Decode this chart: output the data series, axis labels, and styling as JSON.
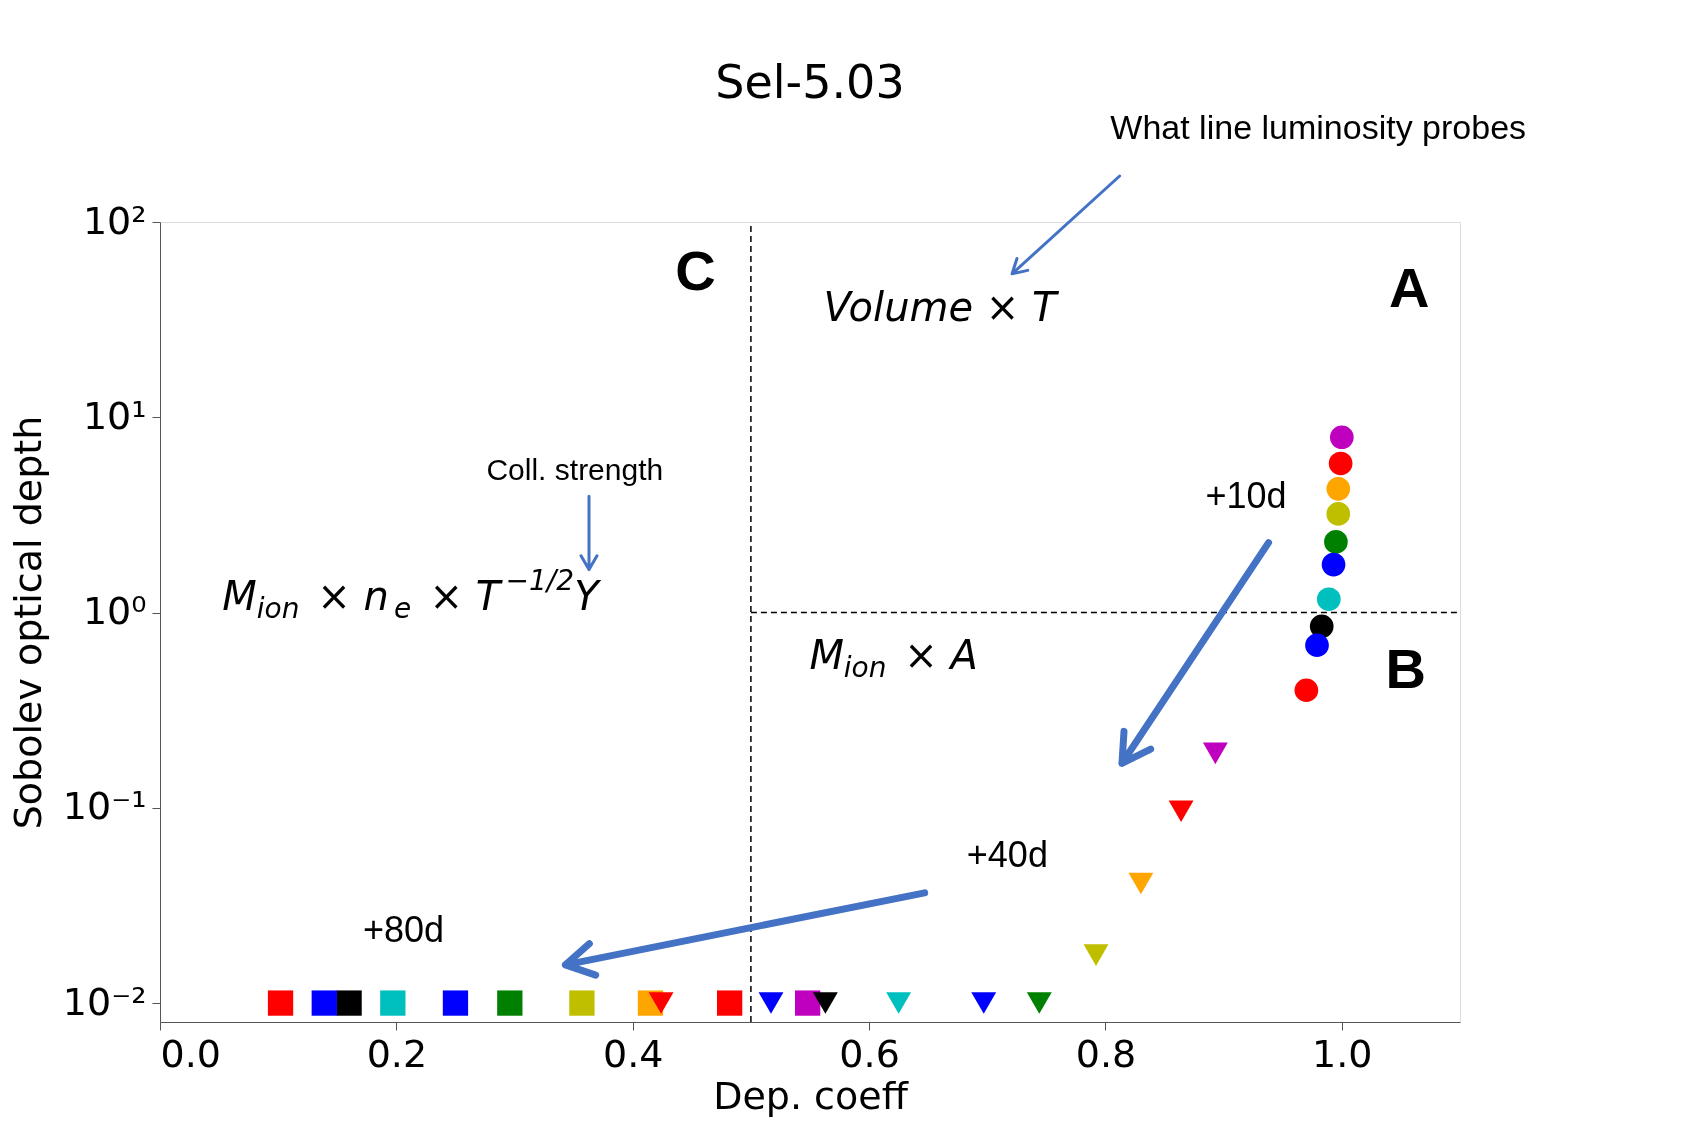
{
  "chart_data": {
    "type": "scatter",
    "title": "Sel-5.03",
    "xlabel": "Dep. coeff",
    "ylabel": "Sobolev optical depth",
    "xlim": [
      0,
      1.1
    ],
    "ylim": [
      0.008,
      100
    ],
    "log": "y",
    "grid": false,
    "xticks": [
      {
        "value": 0,
        "label": "0.0"
      },
      0.2,
      0.4,
      0.6,
      0.8,
      {
        "value": 1,
        "label": "1.0"
      }
    ],
    "yticks": [
      {
        "value": 0.01,
        "label": "10⁻²"
      },
      {
        "value": 0.1,
        "label": "10⁻¹"
      },
      {
        "value": 1,
        "label": "10⁰"
      },
      {
        "value": 10,
        "label": "10¹"
      },
      {
        "value": 100,
        "label": "10²"
      }
    ],
    "series": [
      {
        "type": "scatter",
        "marker": "triangle",
        "x": [
          0.893,
          0.864,
          0.83,
          0.792,
          0.744,
          0.697,
          0.625,
          0.563,
          0.517,
          0.424
        ],
        "values": [
          0.19,
          0.096,
          0.041,
          0.0176,
          0.01,
          0.01,
          0.01,
          0.01,
          0.01,
          0.01
        ],
        "colors": [
          "#bf00bf",
          "#ff0000",
          "#ffa500",
          "#bfbf00",
          "#008000",
          "#0000ff",
          "#00bfbf",
          "#000000",
          "#0000ff",
          "#ff0000"
        ]
      },
      {
        "type": "scatter",
        "marker": "square",
        "x": [
          0.548,
          0.482,
          0.415,
          0.357,
          0.296,
          0.25,
          0.197,
          0.16,
          0.139,
          0.102
        ],
        "values": [
          0.01,
          0.01,
          0.01,
          0.01,
          0.01,
          0.01,
          0.01,
          0.01,
          0.01,
          0.01
        ],
        "colors": [
          "#bf00bf",
          "#ff0000",
          "#ffa500",
          "#bfbf00",
          "#008000",
          "#0000ff",
          "#00bfbf",
          "#000000",
          "#0000ff",
          "#ff0000"
        ]
      },
      {
        "type": "scatter",
        "marker": "circle",
        "x": [
          1.0,
          0.999,
          0.997,
          0.997,
          0.995,
          0.993,
          0.989,
          0.983,
          0.979,
          0.97
        ],
        "values": [
          7.9,
          5.8,
          4.3,
          3.2,
          2.3,
          1.76,
          1.17,
          0.85,
          0.68,
          0.4
        ],
        "colors": [
          "#bf00bf",
          "#ff0000",
          "#ffa500",
          "#bfbf00",
          "#008000",
          "#0000ff",
          "#00bfbf",
          "#000000",
          "#0000ff",
          "#ff0000"
        ]
      }
    ],
    "ref_lines": [
      {
        "axis": "x",
        "value": 0.5,
        "line_style": "dashed",
        "color": "#000000"
      },
      {
        "axis": "y",
        "value": 1,
        "line_style": "dashed",
        "color": "#000000"
      }
    ],
    "annotations": [
      "What line luminosity probes",
      "C",
      "A",
      "B",
      "Volume × T",
      "M$_{ion}$ × A",
      "M$_{ion}$ × n$_{e}$ × T$^{−1/2}$Y",
      "Coll. strength",
      "+10d",
      "+40d",
      "+80d"
    ]
  }
}
